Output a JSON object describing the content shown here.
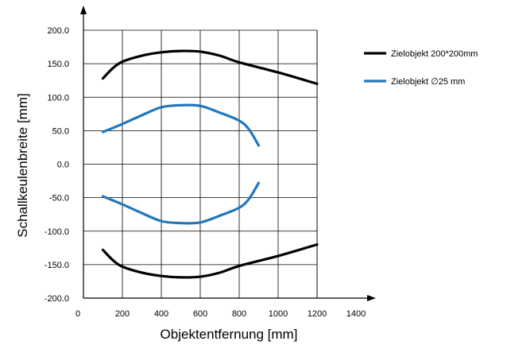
{
  "chart_data": {
    "type": "line",
    "xlabel": "Objektentfernung [mm]",
    "ylabel": "Schallkeulenbreite  [mm]",
    "xlim": [
      0,
      1400
    ],
    "ylim": [
      -200,
      200
    ],
    "x_ticks": [
      "0",
      "200",
      "400",
      "600",
      "800",
      "1000",
      "1200",
      "1400"
    ],
    "y_ticks": [
      "200.0",
      "150.0",
      "100.0",
      "50.0",
      "0.0",
      "-50.0",
      "-100.0",
      "-150.0",
      "-200.0"
    ],
    "grid": true,
    "legend_position": "right",
    "series": [
      {
        "name": "Zielobjekt 200*200mm",
        "color": "#000000",
        "upper": [
          [
            100,
            128
          ],
          [
            150,
            143
          ],
          [
            200,
            153
          ],
          [
            300,
            162
          ],
          [
            400,
            167
          ],
          [
            500,
            169
          ],
          [
            600,
            168
          ],
          [
            700,
            162
          ],
          [
            800,
            152
          ],
          [
            1000,
            137
          ],
          [
            1200,
            120
          ]
        ],
        "lower": [
          [
            100,
            -128
          ],
          [
            150,
            -143
          ],
          [
            200,
            -153
          ],
          [
            300,
            -162
          ],
          [
            400,
            -167
          ],
          [
            500,
            -169
          ],
          [
            600,
            -168
          ],
          [
            700,
            -162
          ],
          [
            800,
            -152
          ],
          [
            1000,
            -137
          ],
          [
            1200,
            -120
          ]
        ]
      },
      {
        "name": "Zielobjekt ∅25 mm",
        "color": "#2277bb",
        "upper": [
          [
            100,
            48
          ],
          [
            200,
            60
          ],
          [
            300,
            73
          ],
          [
            400,
            85
          ],
          [
            500,
            88
          ],
          [
            600,
            87
          ],
          [
            700,
            77
          ],
          [
            800,
            65
          ],
          [
            850,
            52
          ],
          [
            900,
            28
          ]
        ],
        "lower": [
          [
            100,
            -48
          ],
          [
            200,
            -60
          ],
          [
            300,
            -73
          ],
          [
            400,
            -85
          ],
          [
            500,
            -88
          ],
          [
            600,
            -87
          ],
          [
            700,
            -77
          ],
          [
            800,
            -65
          ],
          [
            850,
            -52
          ],
          [
            900,
            -28
          ]
        ]
      }
    ]
  }
}
